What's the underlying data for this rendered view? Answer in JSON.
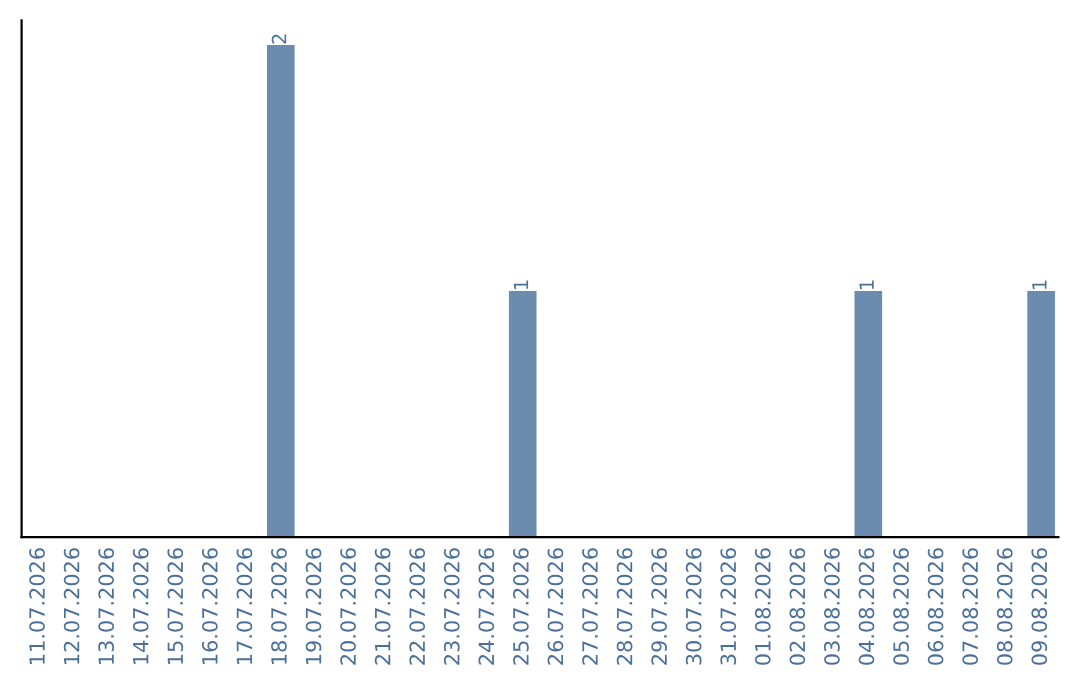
{
  "chart_data": {
    "type": "bar",
    "categories": [
      "11.07.2026",
      "12.07.2026",
      "13.07.2026",
      "14.07.2026",
      "15.07.2026",
      "16.07.2026",
      "17.07.2026",
      "18.07.2026",
      "19.07.2026",
      "20.07.2026",
      "21.07.2026",
      "22.07.2026",
      "23.07.2026",
      "24.07.2026",
      "25.07.2026",
      "26.07.2026",
      "27.07.2026",
      "28.07.2026",
      "29.07.2026",
      "30.07.2026",
      "31.07.2026",
      "01.08.2026",
      "02.08.2026",
      "03.08.2026",
      "04.08.2026",
      "05.08.2026",
      "06.08.2026",
      "07.08.2026",
      "08.08.2026",
      "09.08.2026"
    ],
    "values": [
      0,
      0,
      0,
      0,
      0,
      0,
      0,
      2,
      0,
      0,
      0,
      0,
      0,
      0,
      1,
      0,
      0,
      0,
      0,
      0,
      0,
      0,
      0,
      0,
      1,
      0,
      0,
      0,
      0,
      1
    ],
    "color": "#6b8cae",
    "value_labels": [
      null,
      null,
      null,
      null,
      null,
      null,
      null,
      "2",
      null,
      null,
      null,
      null,
      null,
      null,
      "1",
      null,
      null,
      null,
      null,
      null,
      null,
      null,
      null,
      null,
      "1",
      null,
      null,
      null,
      null,
      "1"
    ],
    "tick_labels": "x",
    "grid": false,
    "legend": false
  }
}
